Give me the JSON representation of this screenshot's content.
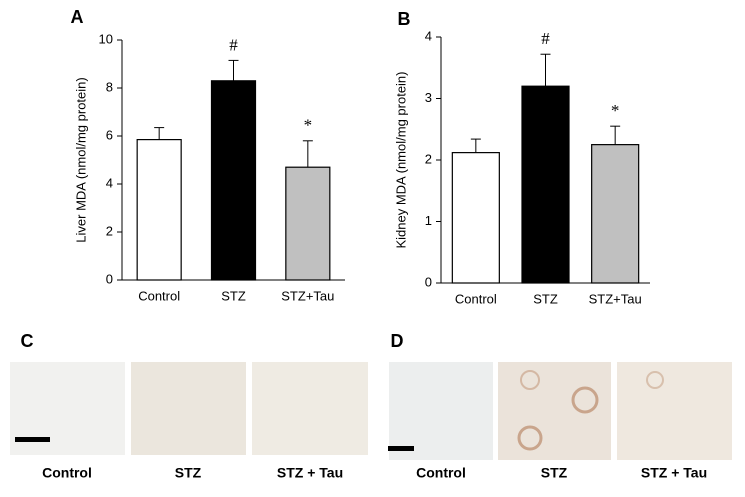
{
  "chart_data": [
    {
      "type": "bar",
      "panel_label": "A",
      "ylabel": "Liver MDA (nmol/mg protein)",
      "categories": [
        "Control",
        "STZ",
        "STZ+Tau"
      ],
      "values": [
        5.85,
        8.3,
        4.7
      ],
      "errors": [
        0.5,
        0.85,
        1.1
      ],
      "colors": [
        "#ffffff",
        "#000000",
        "#c0c0c0"
      ],
      "ylim": [
        0,
        10
      ],
      "yticks": [
        0,
        2,
        4,
        6,
        8,
        10
      ],
      "annotations": [
        {
          "category": "STZ",
          "text": "#"
        },
        {
          "category": "STZ+Tau",
          "text": "*"
        }
      ]
    },
    {
      "type": "bar",
      "panel_label": "B",
      "ylabel": "Kidney MDA (nmol/mg protein)",
      "categories": [
        "Control",
        "STZ",
        "STZ+Tau"
      ],
      "values": [
        2.12,
        3.2,
        2.25
      ],
      "errors": [
        0.22,
        0.52,
        0.3
      ],
      "colors": [
        "#ffffff",
        "#000000",
        "#c0c0c0"
      ],
      "ylim": [
        0,
        4
      ],
      "yticks": [
        0,
        1,
        2,
        3,
        4
      ],
      "annotations": [
        {
          "category": "STZ",
          "text": "#"
        },
        {
          "category": "STZ+Tau",
          "text": "*"
        }
      ]
    }
  ],
  "images": [
    {
      "panel_label": "C",
      "captions": [
        "Control",
        "STZ",
        "STZ + Tau"
      ]
    },
    {
      "panel_label": "D",
      "captions": [
        "Control",
        "STZ",
        "STZ + Tau"
      ]
    }
  ]
}
